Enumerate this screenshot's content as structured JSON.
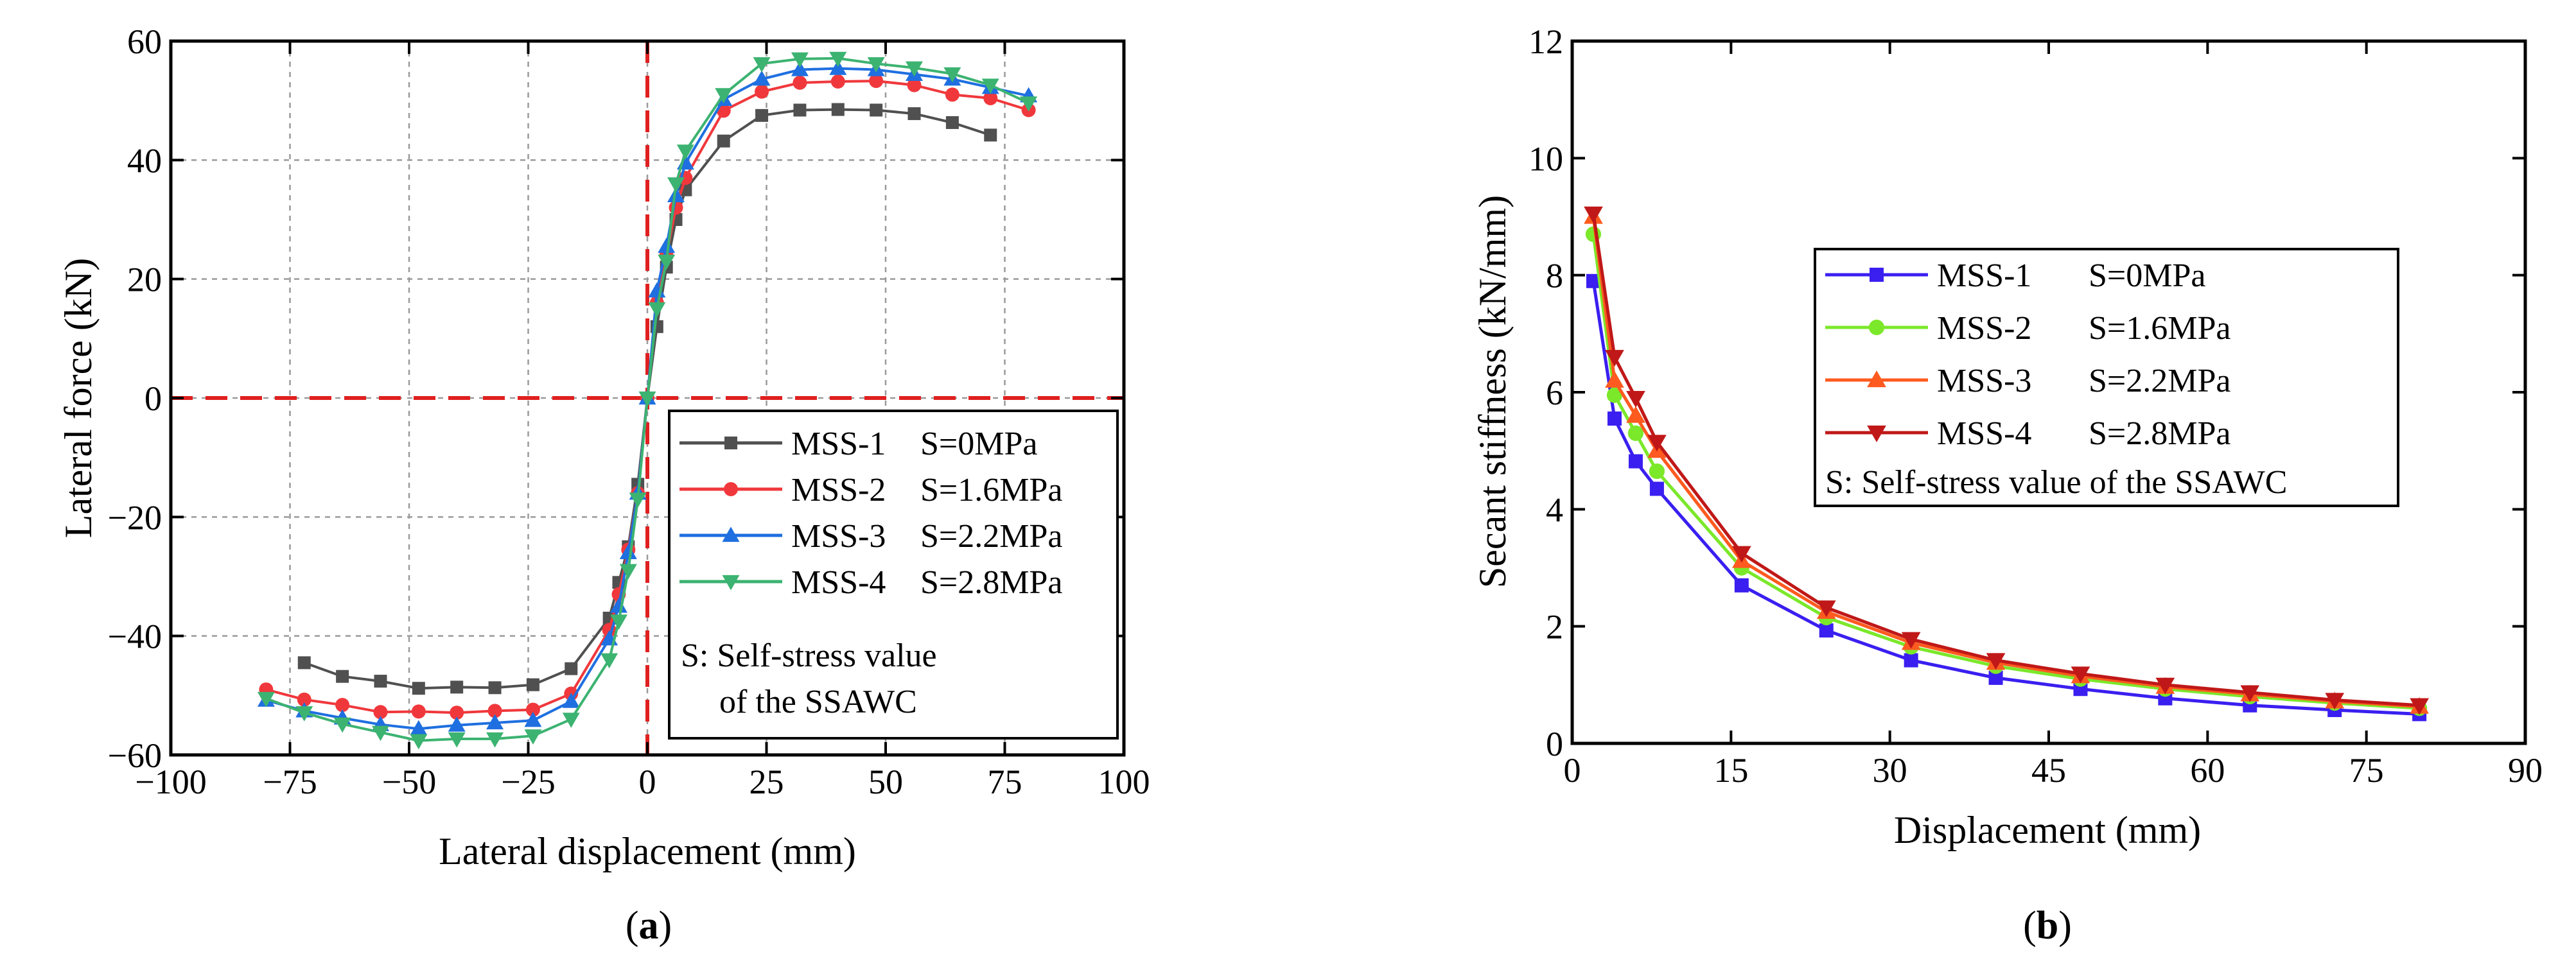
{
  "figure": {
    "caption_a": {
      "open": "(",
      "letter": "a",
      "close": ")"
    },
    "caption_b": {
      "open": "(",
      "letter": "b",
      "close": ")"
    }
  },
  "chart_data": [
    {
      "type": "line",
      "xlabel": "Lateral displacement (mm)",
      "ylabel": "Lateral force (kN)",
      "xlim": [
        -100,
        100
      ],
      "ylim": [
        -60,
        60
      ],
      "xticks": [
        -100,
        -75,
        -50,
        -25,
        0,
        25,
        50,
        75,
        100
      ],
      "yticks": [
        -60,
        -40,
        -20,
        0,
        20,
        40,
        60
      ],
      "xtick_labels": [
        "−100",
        "−75",
        "−50",
        "−25",
        "0",
        "25",
        "50",
        "75",
        "100"
      ],
      "ytick_labels": [
        "−60",
        "−40",
        "−20",
        "0",
        "20",
        "40",
        "60"
      ],
      "grid": true,
      "legend_position": "bottom-right",
      "reference_lines": [
        {
          "orientation": "vertical",
          "value": 0,
          "color": "#e02020",
          "style": "dashed"
        },
        {
          "orientation": "horizontal",
          "value": 0,
          "color": "#e02020",
          "style": "dashed"
        }
      ],
      "legend_note": [
        "S: Self-stress value",
        "of the SSAWC"
      ],
      "series": [
        {
          "name": "MSS-1",
          "label_s": "S=0MPa",
          "color": "#505050",
          "marker": "square",
          "x": [
            -72,
            -64,
            -56,
            -48,
            -40,
            -32,
            -24,
            -16,
            -8,
            -6,
            -4,
            -2,
            0,
            2,
            4,
            6,
            8,
            16,
            24,
            32,
            40,
            48,
            56,
            64,
            72
          ],
          "y": [
            -44.5,
            -46.8,
            -47.6,
            -48.8,
            -48.6,
            -48.7,
            -48.2,
            -45.5,
            -37,
            -31,
            -25,
            -14.5,
            0,
            12,
            22,
            30,
            35,
            43.2,
            47.5,
            48.4,
            48.5,
            48.4,
            47.8,
            46.3,
            44.2
          ]
        },
        {
          "name": "MSS-2",
          "label_s": "S=1.6MPa",
          "color": "#f0383c",
          "marker": "circle",
          "x": [
            -80,
            -72,
            -64,
            -56,
            -48,
            -40,
            -32,
            -24,
            -16,
            -8,
            -6,
            -4,
            -2,
            0,
            2,
            4,
            6,
            8,
            16,
            24,
            32,
            40,
            48,
            56,
            64,
            72,
            80
          ],
          "y": [
            -49,
            -50.7,
            -51.6,
            -52.8,
            -52.7,
            -52.9,
            -52.6,
            -52.4,
            -49.7,
            -39,
            -33,
            -25.5,
            -16,
            0,
            16,
            24,
            32,
            37,
            48.3,
            51.5,
            53,
            53.2,
            53.3,
            52.6,
            51,
            50.4,
            48.4
          ]
        },
        {
          "name": "MSS-3",
          "label_s": "S=2.2MPa",
          "color": "#1f6fe0",
          "marker": "triangle-up",
          "x": [
            -80,
            -72,
            -64,
            -56,
            -48,
            -40,
            -32,
            -24,
            -16,
            -8,
            -6,
            -4,
            -2,
            0,
            2,
            4,
            6,
            8,
            16,
            24,
            32,
            40,
            48,
            56,
            64,
            72,
            80
          ],
          "y": [
            -50.8,
            -52.6,
            -53.8,
            -54.9,
            -55.6,
            -55,
            -54.6,
            -54.2,
            -51,
            -40.5,
            -35,
            -26,
            -16,
            0,
            18,
            25.5,
            34,
            39.5,
            50.2,
            53.6,
            55.2,
            55.4,
            55.2,
            54.4,
            53.6,
            52.2,
            50.8
          ]
        },
        {
          "name": "MSS-4",
          "label_s": "S=2.8MPa",
          "color": "#3cb371",
          "marker": "triangle-down",
          "x": [
            -80,
            -72,
            -64,
            -56,
            -48,
            -40,
            -32,
            -24,
            -16,
            -8,
            -6,
            -4,
            -2,
            0,
            2,
            4,
            6,
            8,
            16,
            24,
            32,
            40,
            48,
            56,
            64,
            72,
            80
          ],
          "y": [
            -50.5,
            -52.9,
            -54.8,
            -56.2,
            -57.6,
            -57.3,
            -57.3,
            -56.8,
            -54,
            -44,
            -37.5,
            -29,
            -17,
            0,
            15,
            23,
            36,
            41.5,
            51,
            56.2,
            57,
            57.1,
            56.2,
            55.5,
            54.5,
            52.6,
            49.6
          ]
        }
      ]
    },
    {
      "type": "line",
      "xlabel": "Displacement (mm)",
      "ylabel": "Secant stiffness (kN/mm)",
      "xlim": [
        0,
        90
      ],
      "ylim": [
        0,
        12
      ],
      "xticks": [
        0,
        15,
        30,
        45,
        60,
        75,
        90
      ],
      "yticks": [
        0,
        2,
        4,
        6,
        8,
        10,
        12
      ],
      "xtick_labels": [
        "0",
        "15",
        "30",
        "45",
        "60",
        "75",
        "90"
      ],
      "ytick_labels": [
        "0",
        "2",
        "4",
        "6",
        "8",
        "10",
        "12"
      ],
      "grid": false,
      "legend_position": "upper-center",
      "legend_note": [
        "S: Self-stress value of the SSAWC"
      ],
      "series": [
        {
          "name": "MSS-1",
          "label_s": "S=0MPa",
          "color": "#3a1ff0",
          "marker": "square",
          "x": [
            2,
            4,
            6,
            8,
            16,
            24,
            32,
            40,
            48,
            56,
            64,
            72,
            80
          ],
          "y": [
            7.9,
            5.55,
            4.82,
            4.35,
            2.7,
            1.93,
            1.42,
            1.12,
            0.93,
            0.77,
            0.65,
            0.57,
            0.5
          ]
        },
        {
          "name": "MSS-2",
          "label_s": "S=1.6MPa",
          "color": "#7be82a",
          "marker": "circle",
          "x": [
            2,
            4,
            6,
            8,
            16,
            24,
            32,
            40,
            48,
            56,
            64,
            72,
            80
          ],
          "y": [
            8.7,
            5.95,
            5.3,
            4.65,
            3.0,
            2.15,
            1.65,
            1.32,
            1.1,
            0.93,
            0.8,
            0.69,
            0.6
          ]
        },
        {
          "name": "MSS-3",
          "label_s": "S=2.2MPa",
          "color": "#ff5a1f",
          "marker": "triangle-up",
          "x": [
            2,
            4,
            6,
            8,
            16,
            24,
            32,
            40,
            48,
            56,
            64,
            72,
            80
          ],
          "y": [
            9.0,
            6.2,
            5.6,
            5.0,
            3.12,
            2.25,
            1.72,
            1.38,
            1.15,
            0.97,
            0.84,
            0.72,
            0.63
          ]
        },
        {
          "name": "MSS-4",
          "label_s": "S=2.8MPa",
          "color": "#c01818",
          "marker": "triangle-down",
          "x": [
            2,
            4,
            6,
            8,
            16,
            24,
            32,
            40,
            48,
            56,
            64,
            72,
            80
          ],
          "y": [
            9.05,
            6.6,
            5.9,
            5.15,
            3.25,
            2.32,
            1.78,
            1.42,
            1.19,
            1.0,
            0.87,
            0.74,
            0.65
          ]
        }
      ]
    }
  ]
}
